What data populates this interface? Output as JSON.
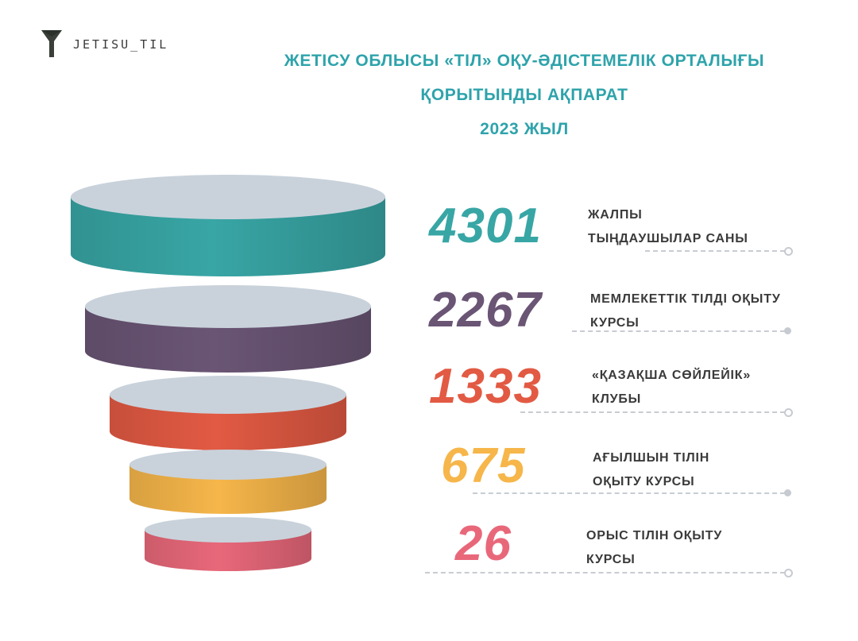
{
  "brand": {
    "name": "JETISU_TIL",
    "icon": "funnel-icon"
  },
  "header": {
    "line1": "ЖЕТІСУ ОБЛЫСЫ «ТІЛ» ОҚУ-ӘДІСТЕМЕЛІК ОРТАЛЫҒЫ",
    "line2": "ҚОРЫТЫНДЫ АҚПАРАТ",
    "line3": "2023 ЖЫЛ"
  },
  "colors": {
    "header_text": "#2ea3ab",
    "cap": "#c9d2db",
    "label_text": "#3a3a3a",
    "dashes": "#c8ccd2"
  },
  "chart_data": {
    "type": "funnel",
    "title": "ЖЕТІСУ ОБЛЫСЫ «ТІЛ» ОҚУ-ӘДІСТЕМЕЛІК ОРТАЛЫҒЫ ҚОРЫТЫНДЫ АҚПАРАТ 2023 ЖЫЛ",
    "items": [
      {
        "value": "4301",
        "label_line1": "ЖАЛПЫ",
        "label_line2": "ТЫҢДАУШЫЛАР САНЫ",
        "color": "#38a6a5"
      },
      {
        "value": "2267",
        "label_line1": "МЕМЛЕКЕТТІК ТІЛДІ ОҚЫТУ",
        "label_line2": "КУРСЫ",
        "color": "#6a5575"
      },
      {
        "value": "1333",
        "label_line1": "«ҚАЗАҚША СӨЙЛЕЙІК»",
        "label_line2": "КЛУБЫ",
        "color": "#e25a43"
      },
      {
        "value": "675",
        "label_line1": "АҒЫЛШЫН ТІЛІН",
        "label_line2": "ОҚЫТУ КУРСЫ",
        "color": "#f6b64a"
      },
      {
        "value": "26",
        "label_line1": "ОРЫС ТІЛІН ОҚЫТУ",
        "label_line2": "КУРСЫ",
        "color": "#e8687a"
      }
    ]
  }
}
